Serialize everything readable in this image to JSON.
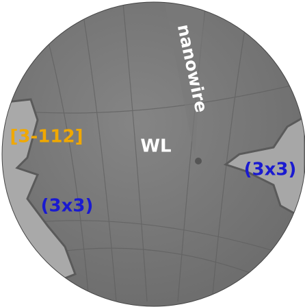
{
  "labels": {
    "direction": "[3-112]",
    "wetting_layer": "WL",
    "nanowire": "nanowire",
    "reconstruction_right": "(3x3)",
    "reconstruction_left": "(3x3)"
  }
}
